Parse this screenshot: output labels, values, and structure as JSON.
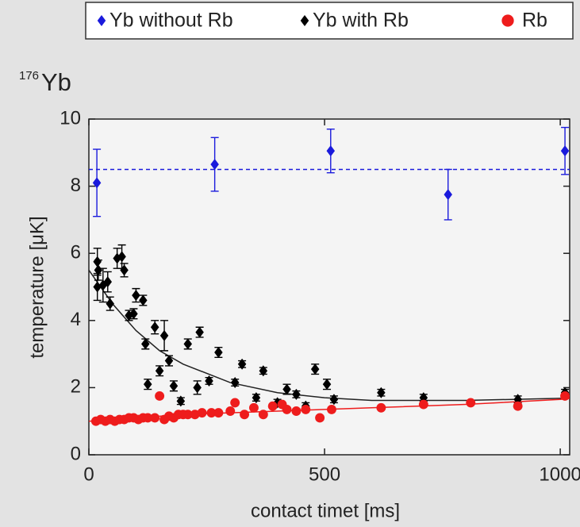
{
  "chart_data": {
    "type": "scatter",
    "title_mass_number": "176",
    "title": "Yb",
    "x_label": "contact timet [ms]",
    "y_label": "temperature [μK]",
    "xlim": [
      0,
      1020
    ],
    "ylim": [
      0,
      10
    ],
    "xticks": [
      0,
      500,
      1000
    ],
    "yticks": [
      0,
      2,
      4,
      6,
      8,
      10
    ],
    "legend": "top",
    "series": [
      {
        "name": "Yb without Rb",
        "color": "#1a1adc",
        "marker": "diamond",
        "x": [
          17,
          267,
          513,
          762,
          1010
        ],
        "values": [
          8.1,
          8.65,
          9.05,
          7.75,
          9.05
        ],
        "errors": [
          1.0,
          0.8,
          0.65,
          0.75,
          0.7
        ]
      },
      {
        "name": "Yb with Rb",
        "color": "#000000",
        "marker": "diamond",
        "x": [
          18,
          18,
          20,
          30,
          40,
          45,
          60,
          70,
          75,
          85,
          95,
          100,
          115,
          120,
          125,
          140,
          150,
          160,
          170,
          180,
          195,
          210,
          230,
          235,
          255,
          275,
          310,
          325,
          355,
          370,
          400,
          420,
          440,
          460,
          480,
          505,
          520,
          620,
          710,
          910,
          1010
        ],
        "values": [
          5.75,
          5.0,
          5.5,
          5.05,
          5.15,
          4.5,
          5.85,
          5.9,
          5.5,
          4.15,
          4.2,
          4.75,
          4.6,
          3.3,
          2.1,
          3.8,
          2.5,
          3.55,
          2.8,
          2.05,
          1.6,
          3.3,
          2.0,
          3.65,
          2.2,
          3.05,
          2.15,
          2.7,
          1.7,
          2.5,
          1.55,
          1.95,
          1.8,
          1.45,
          2.55,
          2.1,
          1.65,
          1.85,
          1.7,
          1.65,
          1.85
        ],
        "errors": [
          0.4,
          0.4,
          0.3,
          0.5,
          0.3,
          0.2,
          0.3,
          0.35,
          0.2,
          0.15,
          0.15,
          0.2,
          0.15,
          0.15,
          0.15,
          0.2,
          0.15,
          0.45,
          0.15,
          0.15,
          0.1,
          0.15,
          0.2,
          0.15,
          0.1,
          0.15,
          0.1,
          0.1,
          0.1,
          0.1,
          0.1,
          0.15,
          0.1,
          0.1,
          0.15,
          0.15,
          0.1,
          0.1,
          0.1,
          0.1,
          0.1
        ]
      },
      {
        "name": "Rb",
        "color": "#ee1c1c",
        "marker": "circle",
        "x": [
          15,
          25,
          35,
          45,
          55,
          65,
          75,
          85,
          95,
          105,
          115,
          125,
          140,
          150,
          160,
          170,
          180,
          190,
          200,
          210,
          225,
          240,
          260,
          275,
          300,
          310,
          330,
          350,
          370,
          390,
          410,
          420,
          440,
          460,
          490,
          515,
          620,
          710,
          810,
          910,
          1010
        ],
        "values": [
          1.0,
          1.05,
          1.0,
          1.05,
          1.0,
          1.05,
          1.05,
          1.1,
          1.1,
          1.05,
          1.1,
          1.1,
          1.1,
          1.75,
          1.05,
          1.15,
          1.1,
          1.2,
          1.2,
          1.2,
          1.2,
          1.25,
          1.25,
          1.25,
          1.3,
          1.55,
          1.2,
          1.4,
          1.2,
          1.45,
          1.5,
          1.35,
          1.3,
          1.35,
          1.1,
          1.35,
          1.4,
          1.5,
          1.55,
          1.45,
          1.75
        ]
      }
    ],
    "lines": [
      {
        "color": "#1a1adc",
        "style": "dashed",
        "x": [
          0,
          1020
        ],
        "values": [
          8.5,
          8.5
        ]
      },
      {
        "color": "#222222",
        "style": "solid",
        "x": [
          0,
          50,
          100,
          150,
          200,
          300,
          400,
          500,
          600,
          800,
          1000,
          1020
        ],
        "values": [
          5.5,
          4.5,
          3.7,
          3.1,
          2.7,
          2.15,
          1.85,
          1.7,
          1.62,
          1.62,
          1.68,
          1.7
        ]
      },
      {
        "color": "#ee1c1c",
        "style": "solid",
        "x": [
          0,
          50,
          100,
          150,
          200,
          300,
          400,
          500,
          600,
          800,
          1000,
          1020
        ],
        "values": [
          1.0,
          1.05,
          1.1,
          1.15,
          1.2,
          1.25,
          1.3,
          1.35,
          1.4,
          1.5,
          1.65,
          1.68
        ]
      }
    ]
  }
}
